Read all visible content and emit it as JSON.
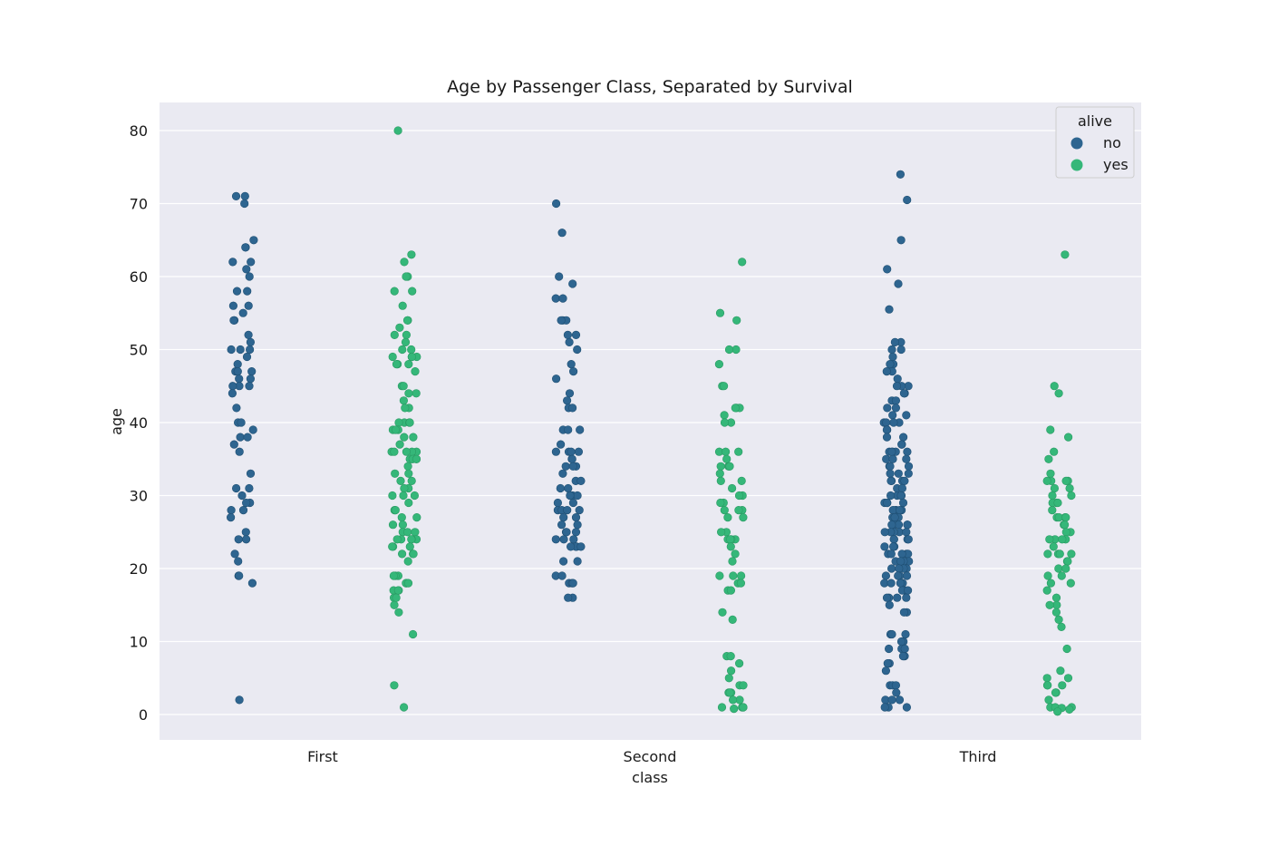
{
  "chart_data": {
    "type": "scatter",
    "title": "Age by Passenger Class, Separated by Survival",
    "xlabel": "class",
    "ylabel": "age",
    "categories": [
      "First",
      "Second",
      "Third"
    ],
    "ylim": [
      -3.4,
      84
    ],
    "yticks": [
      0,
      10,
      20,
      30,
      40,
      50,
      60,
      70,
      80
    ],
    "grid": true,
    "legend": {
      "title": "alive",
      "position": "top-right"
    },
    "series": [
      {
        "name": "no",
        "color": "#2e6590",
        "points": {
          "First": [
            71,
            71,
            70,
            65,
            64,
            64,
            62,
            62,
            61,
            60,
            58,
            58,
            56,
            56,
            55,
            54,
            54,
            52,
            51,
            50,
            50,
            50,
            49,
            48,
            47,
            47,
            47,
            46,
            46,
            45,
            45,
            45,
            44,
            42,
            40,
            40,
            39,
            38,
            38,
            37,
            36,
            33,
            31,
            31,
            30,
            29,
            29,
            28,
            28,
            27,
            25,
            24,
            24,
            22,
            21,
            19,
            19,
            18,
            2
          ],
          "Second": [
            70,
            66,
            60,
            59,
            57,
            57,
            54,
            54,
            54,
            52,
            52,
            51,
            50,
            48,
            47,
            46,
            44,
            43,
            42,
            42,
            39,
            39,
            39,
            37,
            36,
            36,
            36,
            36,
            35,
            35,
            34,
            34,
            34,
            33,
            32,
            32,
            31,
            31,
            30,
            30,
            30,
            30,
            29,
            29,
            28,
            28,
            28,
            28,
            27,
            27,
            26,
            26,
            25,
            25,
            25,
            24,
            24,
            24,
            23,
            23,
            23,
            23,
            21,
            21,
            19,
            19,
            18,
            18,
            18,
            16,
            16
          ],
          "Third": [
            74,
            70.5,
            65,
            61,
            59,
            55.5,
            51,
            51,
            50,
            50,
            49,
            48,
            48,
            47,
            47,
            46,
            45,
            45,
            45,
            44,
            44,
            43,
            43,
            42,
            42,
            41,
            41,
            40,
            40,
            40,
            40,
            39,
            39,
            38,
            38,
            37,
            37,
            36,
            36,
            36,
            36,
            36,
            35,
            35,
            35,
            34,
            34,
            34,
            33,
            33,
            33,
            32,
            32,
            32,
            32,
            31,
            31,
            30,
            30,
            30,
            30,
            29,
            29,
            29,
            29,
            28,
            28,
            28,
            28,
            28,
            27,
            27,
            27,
            26,
            26,
            26,
            26,
            26,
            25,
            25,
            25,
            25,
            25,
            24,
            24,
            24,
            24,
            23,
            23,
            23,
            22,
            22,
            22,
            22,
            22,
            21,
            21,
            21,
            21,
            20,
            20,
            20,
            20,
            19,
            19,
            19,
            19,
            18,
            18,
            18,
            18,
            17,
            17,
            17,
            16,
            16,
            16,
            16,
            15,
            14,
            14,
            11,
            11,
            11,
            10,
            10,
            9,
            9,
            9,
            8,
            8,
            7,
            7,
            6,
            4,
            4,
            4,
            3,
            2,
            2,
            2,
            1,
            1,
            1
          ]
        }
      },
      {
        "name": "yes",
        "color": "#35b779",
        "points": {
          "First": [
            80,
            63,
            62,
            60,
            60,
            58,
            58,
            56,
            54,
            54,
            53,
            52,
            52,
            51,
            50,
            50,
            49,
            49,
            49,
            49,
            48,
            48,
            48,
            47,
            45,
            45,
            44,
            44,
            43,
            42,
            42,
            40,
            40,
            40,
            40,
            39,
            39,
            39,
            38,
            38,
            37,
            36,
            36,
            36,
            36,
            36,
            35,
            35,
            35,
            35,
            35,
            34,
            33,
            33,
            32,
            32,
            31,
            31,
            30,
            30,
            30,
            29,
            28,
            28,
            27,
            27,
            26,
            26,
            25,
            25,
            25,
            24,
            24,
            24,
            24,
            24,
            23,
            23,
            23,
            22,
            22,
            22,
            21,
            19,
            19,
            19,
            18,
            18,
            18,
            17,
            17,
            17,
            16,
            16,
            15,
            14,
            11,
            4,
            1
          ],
          "Second": [
            62,
            55,
            54,
            50,
            50,
            48,
            45,
            45,
            42,
            42,
            42,
            41,
            40,
            40,
            36,
            36,
            36,
            35,
            34,
            34,
            34,
            34,
            33,
            32,
            32,
            31,
            30,
            30,
            29,
            29,
            28,
            28,
            28,
            27,
            27,
            25,
            25,
            24,
            24,
            24,
            24,
            23,
            22,
            21,
            19,
            19,
            19,
            18,
            18,
            17,
            17,
            14,
            13,
            8,
            8,
            7,
            6,
            5,
            4,
            4,
            3,
            3,
            3,
            2,
            2,
            1,
            1,
            1,
            1,
            0.8
          ],
          "Third": [
            63,
            45,
            44,
            39,
            38,
            36,
            35,
            33,
            32,
            32,
            32,
            32,
            31,
            31,
            30,
            30,
            29,
            29,
            29,
            28,
            27,
            27,
            27,
            27,
            26,
            26,
            25,
            25,
            24,
            24,
            24,
            24,
            23,
            22,
            22,
            22,
            22,
            21,
            21,
            20,
            20,
            19,
            19,
            18,
            18,
            17,
            16,
            15,
            15,
            14,
            13,
            12,
            9,
            6,
            5,
            5,
            4,
            4,
            4,
            3,
            3,
            2,
            1,
            1,
            1,
            0.9,
            0.7,
            0.4
          ]
        }
      }
    ]
  }
}
